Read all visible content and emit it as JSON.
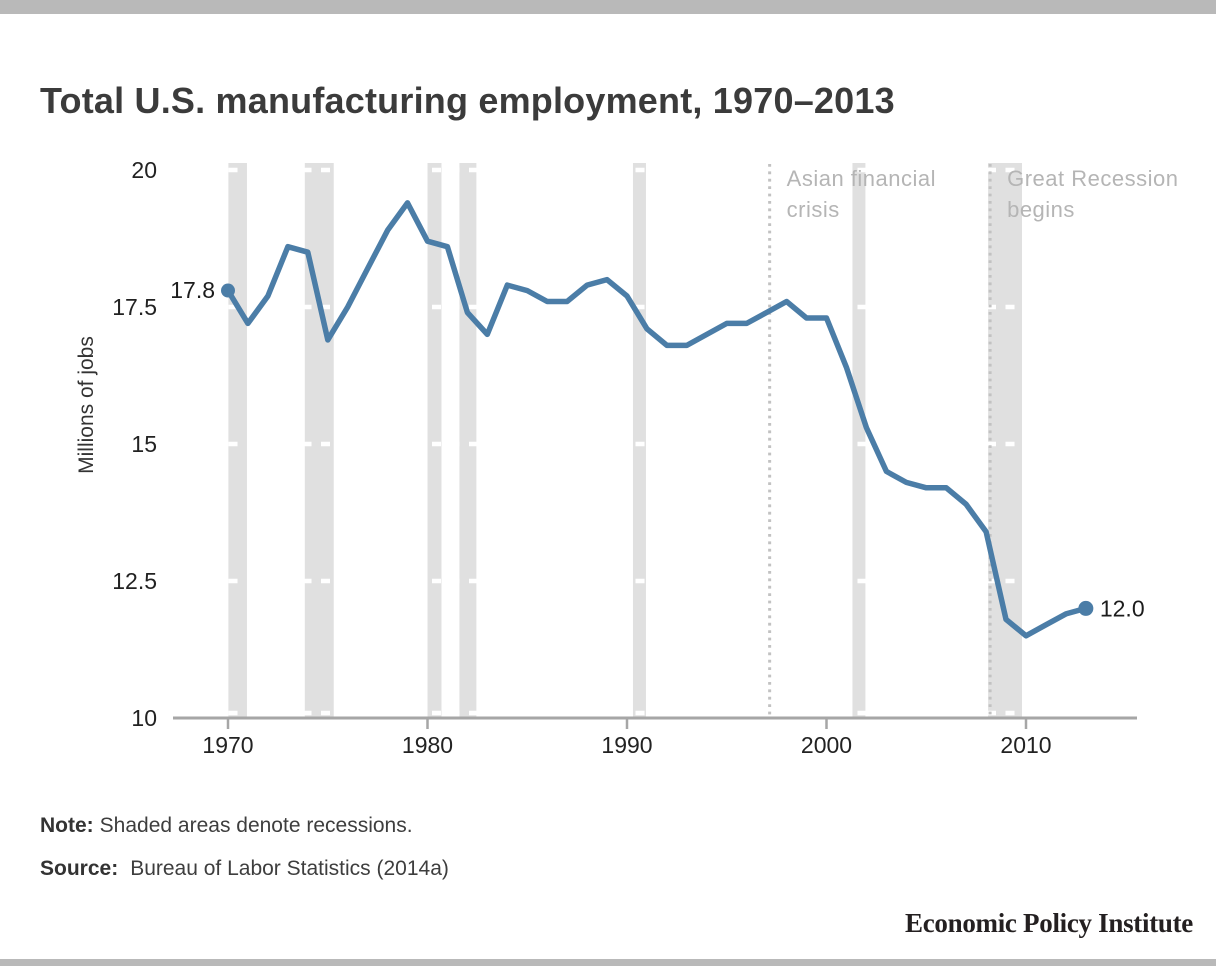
{
  "page": {
    "title": "Total U.S. manufacturing employment, 1970–2013",
    "note_label": "Note:",
    "note_text": "Shaded areas denote recessions.",
    "source_label": "Source:",
    "source_text": "Bureau of Labor Statistics (2014a)",
    "branding": "Economic Policy Institute"
  },
  "colors": {
    "line": "#4b7da7",
    "recession_band": "#e0e0e0",
    "gridline": "#ffffff",
    "annotation_line": "#c2c2c2",
    "annotation_text": "#b5b5b5",
    "axis": "#a6a6a6",
    "tick_label": "#222222",
    "data_label": "#1c1c1c",
    "bars": "#b9b9b9"
  },
  "chart_data": {
    "type": "line",
    "title": "Total U.S. manufacturing employment, 1970–2013",
    "xlabel": "",
    "ylabel": "Millions of jobs",
    "ylim": [
      10,
      20
    ],
    "xlim": [
      1967.2,
      2015.6
    ],
    "grid": "horizontal white dashed gridlines, visible over recession shading",
    "legend": "none",
    "yticks": [
      {
        "value": 10,
        "label": "10"
      },
      {
        "value": 12.5,
        "label": "12.5"
      },
      {
        "value": 15,
        "label": "15"
      },
      {
        "value": 17.5,
        "label": "17.5"
      },
      {
        "value": 20,
        "label": "20"
      }
    ],
    "xticks": [
      {
        "value": 1970,
        "label": "1970"
      },
      {
        "value": 1980,
        "label": "1980"
      },
      {
        "value": 1990,
        "label": "1990"
      },
      {
        "value": 2000,
        "label": "2000"
      },
      {
        "value": 2010,
        "label": "2010"
      }
    ],
    "x": [
      1970,
      1971,
      1972,
      1973,
      1974,
      1975,
      1976,
      1977,
      1978,
      1979,
      1980,
      1981,
      1982,
      1983,
      1984,
      1985,
      1986,
      1987,
      1988,
      1989,
      1990,
      1991,
      1992,
      1993,
      1994,
      1995,
      1996,
      1997,
      1998,
      1999,
      2000,
      2001,
      2002,
      2003,
      2004,
      2005,
      2006,
      2007,
      2008,
      2009,
      2010,
      2011,
      2012,
      2013
    ],
    "values": [
      17.8,
      17.2,
      17.7,
      18.6,
      18.5,
      16.9,
      17.5,
      18.2,
      18.9,
      19.4,
      18.7,
      18.6,
      17.4,
      17.0,
      17.9,
      17.8,
      17.6,
      17.6,
      17.9,
      18.0,
      17.7,
      17.1,
      16.8,
      16.8,
      17.0,
      17.2,
      17.2,
      17.4,
      17.6,
      17.3,
      17.3,
      16.4,
      15.3,
      14.5,
      14.3,
      14.2,
      14.2,
      13.9,
      13.4,
      11.8,
      11.5,
      11.7,
      11.9,
      12.0
    ],
    "first_point_label": "17.8",
    "last_point_label": "12.0",
    "recessions": [
      {
        "start": 1970.02,
        "end": 1970.95
      },
      {
        "start": 1973.85,
        "end": 1975.3
      },
      {
        "start": 1980.0,
        "end": 1980.7
      },
      {
        "start": 1981.6,
        "end": 1982.45
      },
      {
        "start": 1990.3,
        "end": 1990.95
      },
      {
        "start": 2001.3,
        "end": 2001.95
      },
      {
        "start": 2008.1,
        "end": 2009.8
      }
    ],
    "annotations": [
      {
        "year": 1997.15,
        "lines": [
          "Asian financial",
          "crisis"
        ]
      },
      {
        "year": 2008.2,
        "lines": [
          "Great Recession",
          "begins"
        ]
      }
    ]
  }
}
